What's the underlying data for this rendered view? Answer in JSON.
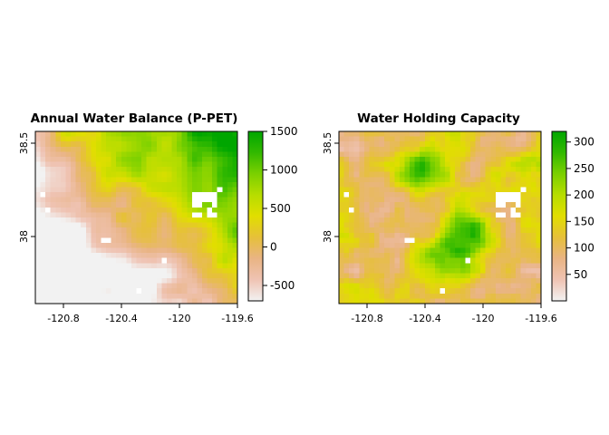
{
  "figure": {
    "background": "#ffffff"
  },
  "chart_data": [
    {
      "type": "heatmap",
      "title": "Annual Water Balance (P-PET)",
      "xlabel": "",
      "ylabel": "",
      "xlim": [
        -121.0,
        -119.6
      ],
      "ylim": [
        37.66,
        38.57
      ],
      "x_ticks": [
        -120.8,
        -120.4,
        -120.0,
        -119.6
      ],
      "x_tick_labels": [
        "-120.8",
        "-120.4",
        "-120",
        "-119.6"
      ],
      "y_ticks": [
        38.0,
        38.5
      ],
      "y_tick_labels": [
        "38",
        "38.5"
      ],
      "colorbar": {
        "range": [
          -700,
          1500
        ],
        "ticks": [
          -500,
          0,
          500,
          1000,
          1500
        ],
        "tick_labels": [
          "-500",
          "0",
          "500",
          "1000",
          "1500"
        ],
        "colors": [
          "#f2f2f2",
          "#efc3b3",
          "#e9b484",
          "#e6c03a",
          "#e1de00",
          "#b7dd00",
          "#7bd000",
          "#32b900",
          "#00a600"
        ]
      },
      "pattern": "low (about -700) toward the southwest, rising to about 1500 toward the east and northeast; scattered no-data pixels near -119.8, 38.15"
    },
    {
      "type": "heatmap",
      "title": "Water Holding Capacity",
      "xlabel": "",
      "ylabel": "",
      "xlim": [
        -121.0,
        -119.6
      ],
      "ylim": [
        37.66,
        38.57
      ],
      "x_ticks": [
        -120.8,
        -120.4,
        -120.0,
        -119.6
      ],
      "x_tick_labels": [
        "-120.8",
        "-120.4",
        "-120",
        "-119.6"
      ],
      "y_ticks": [
        38.0,
        38.5
      ],
      "y_tick_labels": [
        "38",
        "38.5"
      ],
      "colorbar": {
        "range": [
          0,
          320
        ],
        "ticks": [
          50,
          100,
          150,
          200,
          250,
          300
        ],
        "tick_labels": [
          "50",
          "100",
          "150",
          "200",
          "250",
          "300"
        ],
        "colors": [
          "#f2f2f2",
          "#efc3b3",
          "#e9b484",
          "#e6c03a",
          "#e1de00",
          "#b7dd00",
          "#7bd000",
          "#32b900",
          "#00a600"
        ]
      },
      "pattern": "mostly low-to-mid values (about 30-120), patches of high values (about 200-320) in the upper centre near -120.5, 38.4 and in the lower centre"
    }
  ]
}
